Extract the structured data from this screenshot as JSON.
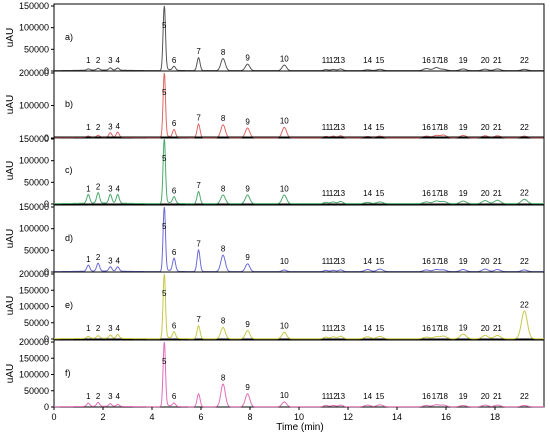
{
  "chart_data": {
    "type": "line",
    "xlabel": "Time (min)",
    "xlim": [
      0,
      20
    ],
    "xticks": [
      0,
      2,
      4,
      6,
      8,
      10,
      12,
      14,
      16,
      18
    ],
    "ylabel": "uAU",
    "grid": false,
    "legend": "none",
    "peak_times": [
      1.4,
      1.8,
      2.3,
      2.6,
      4.5,
      4.9,
      5.9,
      6.9,
      7.9,
      9.4,
      11.1,
      11.4,
      11.7,
      12.8,
      13.3,
      15.2,
      15.6,
      15.9,
      16.7,
      17.6,
      18.1,
      19.2
    ],
    "panels": [
      {
        "label": "a)",
        "color": "#555555",
        "ylim": [
          0,
          150000
        ],
        "yticks": [
          0,
          50000,
          100000,
          150000
        ],
        "ytick_labels": [
          "0",
          "50000",
          "100000",
          "150000"
        ],
        "peak_labels": [
          "1",
          "2",
          "3",
          "4",
          "5",
          "6",
          "7",
          "8",
          "9",
          "10",
          "11",
          "12",
          "13",
          "14",
          "15",
          "16",
          "17",
          "18",
          "19",
          "20",
          "21",
          "22"
        ],
        "peak_heights": [
          3000,
          4000,
          5000,
          5000,
          150000,
          9000,
          30000,
          28000,
          15000,
          13000,
          2500,
          3000,
          4000,
          2000,
          3000,
          5000,
          7000,
          3000,
          4000,
          3500,
          4000,
          3000
        ]
      },
      {
        "label": "b)",
        "color": "#e06666",
        "ylim": [
          0,
          200000
        ],
        "yticks": [
          0,
          100000,
          200000
        ],
        "ytick_labels": [
          "0",
          "100000",
          "200000"
        ],
        "peak_labels": [
          "1",
          "2",
          "3",
          "4",
          "5",
          "6",
          "7",
          "8",
          "9",
          "10",
          "11",
          "12",
          "13",
          "14",
          "15",
          "16",
          "17",
          "18",
          "19",
          "20",
          "21",
          "22"
        ],
        "peak_heights": [
          4000,
          6000,
          14000,
          16000,
          200000,
          24000,
          42000,
          40000,
          30000,
          32000,
          4000,
          5000,
          6000,
          4000,
          5000,
          5000,
          7000,
          8000,
          7000,
          6000,
          6000,
          5000
        ]
      },
      {
        "label": "c)",
        "color": "#4daa6b",
        "ylim": [
          0,
          150000
        ],
        "yticks": [
          0,
          50000,
          100000,
          150000
        ],
        "ytick_labels": [
          "0",
          "50000",
          "100000",
          "150000"
        ],
        "peak_labels": [
          "1",
          "2",
          "3",
          "4",
          "5",
          "6",
          "7",
          "8",
          "9",
          "10",
          "11",
          "12",
          "13",
          "14",
          "15",
          "16",
          "17",
          "18",
          "19",
          "20",
          "21",
          "22"
        ],
        "peak_heights": [
          20000,
          24000,
          20000,
          20000,
          150000,
          15000,
          28000,
          20000,
          20000,
          20000,
          3000,
          4000,
          5000,
          3000,
          4000,
          4000,
          6000,
          5000,
          6000,
          7000,
          8000,
          10000
        ]
      },
      {
        "label": "d)",
        "color": "#6b6bd6",
        "ylim": [
          0,
          150000
        ],
        "yticks": [
          0,
          50000,
          100000,
          150000
        ],
        "ytick_labels": [
          "0",
          "50000",
          "100000",
          "150000"
        ],
        "peak_labels": [
          "1",
          "2",
          "3",
          "4",
          "5",
          "6",
          "7",
          "8",
          "9",
          "10",
          "11",
          "12",
          "13",
          "14",
          "15",
          "16",
          "17",
          "18",
          "19",
          "20",
          "21",
          "22"
        ],
        "peak_heights": [
          14000,
          18000,
          10000,
          10000,
          150000,
          30000,
          50000,
          38000,
          18000,
          4000,
          3000,
          3000,
          4000,
          5000,
          6000,
          4000,
          5000,
          4000,
          5000,
          6000,
          5000,
          4000
        ]
      },
      {
        "label": "e)",
        "color": "#c8c84a",
        "ylim": [
          0,
          200000
        ],
        "yticks": [
          0,
          50000,
          100000,
          150000,
          200000
        ],
        "ytick_labels": [
          "0",
          "50000",
          "100000",
          "150000",
          "200000"
        ],
        "peak_labels": [
          "1",
          "2",
          "3",
          "4",
          "5",
          "6",
          "7",
          "8",
          "9",
          "10",
          "11",
          "12",
          "13",
          "14",
          "15",
          "16",
          "17",
          "18",
          "19",
          "20",
          "21",
          "22"
        ],
        "peak_heights": [
          6000,
          8000,
          10000,
          12000,
          200000,
          20000,
          40000,
          35000,
          25000,
          20000,
          5000,
          6000,
          8000,
          6000,
          7000,
          5000,
          6000,
          8000,
          14000,
          10000,
          10000,
          85000
        ]
      },
      {
        "label": "f)",
        "color": "#e06fb8",
        "ylim": [
          0,
          200000
        ],
        "yticks": [
          0,
          50000,
          100000,
          150000,
          200000
        ],
        "ytick_labels": [
          "0",
          "50000",
          "100000",
          "150000",
          "200000"
        ],
        "peak_labels": [
          "1",
          "2",
          "3",
          "4",
          "5",
          "6",
          "8",
          "9",
          "10",
          "11",
          "12",
          "13",
          "14",
          "15",
          "16",
          "17",
          "18",
          "19",
          "20",
          "21",
          "22"
        ],
        "peak_label_times": [
          1.4,
          1.8,
          2.3,
          2.6,
          4.5,
          4.9,
          6.9,
          7.9,
          9.4,
          11.1,
          11.4,
          11.7,
          12.8,
          13.3,
          15.2,
          15.6,
          15.9,
          16.7,
          17.6,
          18.1,
          19.2
        ],
        "peak_heights": [
          10000,
          12000,
          8000,
          6000,
          200000,
          10000,
          40000,
          70000,
          40000,
          15000,
          4000,
          4000,
          5000,
          5000,
          6000,
          4000,
          6000,
          5000,
          4000,
          5000,
          5000,
          4000
        ]
      }
    ]
  }
}
